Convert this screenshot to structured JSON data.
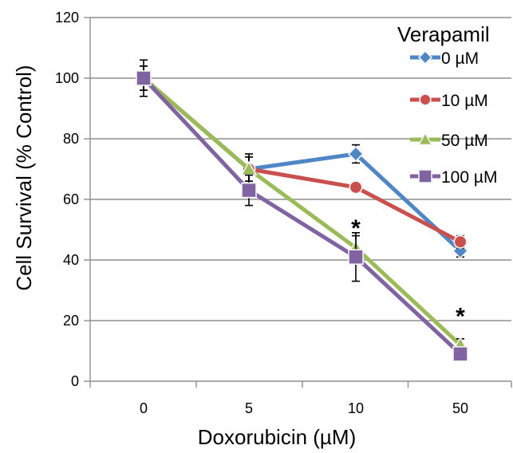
{
  "chart_data": {
    "type": "line",
    "title": "",
    "xlabel": "Doxorubicin (µM)",
    "ylabel": "Cell Survival (% Control)",
    "categories": [
      "0",
      "5",
      "10",
      "50"
    ],
    "ylim": [
      0,
      120
    ],
    "yticks": [
      "0",
      "20",
      "40",
      "60",
      "80",
      "100",
      "120"
    ],
    "grid": true,
    "legend": {
      "title": "Verapamil",
      "placement": "top-right"
    },
    "series": [
      {
        "name": "0 µM",
        "color": "#4f86c6",
        "marker": "diamond",
        "values": [
          100,
          70,
          75,
          43
        ],
        "errors": [
          6,
          5,
          3,
          2
        ]
      },
      {
        "name": "10 µM",
        "color": "#c9504c",
        "marker": "circle",
        "values": [
          100,
          70,
          64,
          46
        ],
        "errors": [
          4,
          4,
          1,
          2
        ]
      },
      {
        "name": "50 µM",
        "color": "#9bbb59",
        "marker": "triangle",
        "values": [
          100,
          70,
          44,
          12
        ],
        "errors": [
          4,
          4,
          4,
          2
        ]
      },
      {
        "name": "100 µM",
        "color": "#8064a2",
        "marker": "square",
        "values": [
          100,
          63,
          41,
          9
        ],
        "errors": [
          4,
          5,
          8,
          2
        ]
      }
    ],
    "annotations": [
      {
        "text": "*",
        "category": "10",
        "value": 51
      },
      {
        "text": "*",
        "category": "50",
        "value": 22
      }
    ]
  }
}
